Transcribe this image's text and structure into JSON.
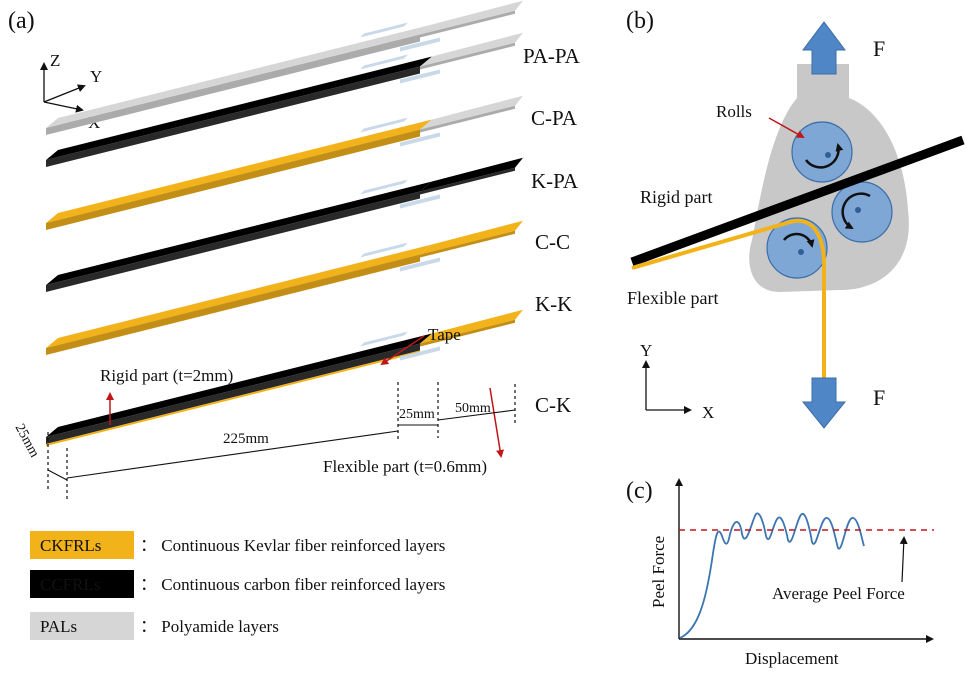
{
  "panels": {
    "a": "(a)",
    "b": "(b)",
    "c": "(c)"
  },
  "axes_a": {
    "z": "Z",
    "y": "Y",
    "x": "X"
  },
  "specimens": [
    "PA-PA",
    "C-PA",
    "K-PA",
    "C-C",
    "K-K",
    "C-K"
  ],
  "annotations": {
    "tape": "Tape",
    "rigid_part": "Rigid part (t=2mm)",
    "flexible_part": "Flexible part (t=0.6mm)",
    "width": "25mm",
    "length_rigid": "225mm",
    "length_tape": "25mm",
    "length_flexible": "50mm"
  },
  "legend": [
    {
      "tag": "CKFRLs",
      "desc": "： Continuous Kevlar fiber reinforced layers",
      "color": "#f2b21a",
      "text_color": "#111111"
    },
    {
      "tag": "CCFRLs",
      "desc": "： Continuous carbon fiber reinforced layers",
      "color": "#000000",
      "text_color": "#ffffff"
    },
    {
      "tag": "PALs",
      "desc": "： Polyamide layers",
      "color": "#d6d6d6",
      "text_color": "#111111"
    }
  ],
  "panel_b": {
    "force": "F",
    "rolls": "Rolls",
    "rigid_part": "Rigid part",
    "flexible_part": "Flexible part",
    "axis_y": "Y",
    "axis_x": "X"
  },
  "panel_c": {
    "ylabel": "Peel Force",
    "xlabel": "Displacement",
    "avg_label": "Average Peel Force"
  },
  "colors": {
    "kevlar": "#f2b21a",
    "carbon": "#000000",
    "polyamide": "#d6d6d6",
    "tape": "#c9d9ea",
    "roll": "#7fa7d6",
    "arrow_blue": "#4f86c6",
    "grip": "#c8c8c8",
    "red": "#c0161a",
    "curve": "#3c75b0"
  }
}
